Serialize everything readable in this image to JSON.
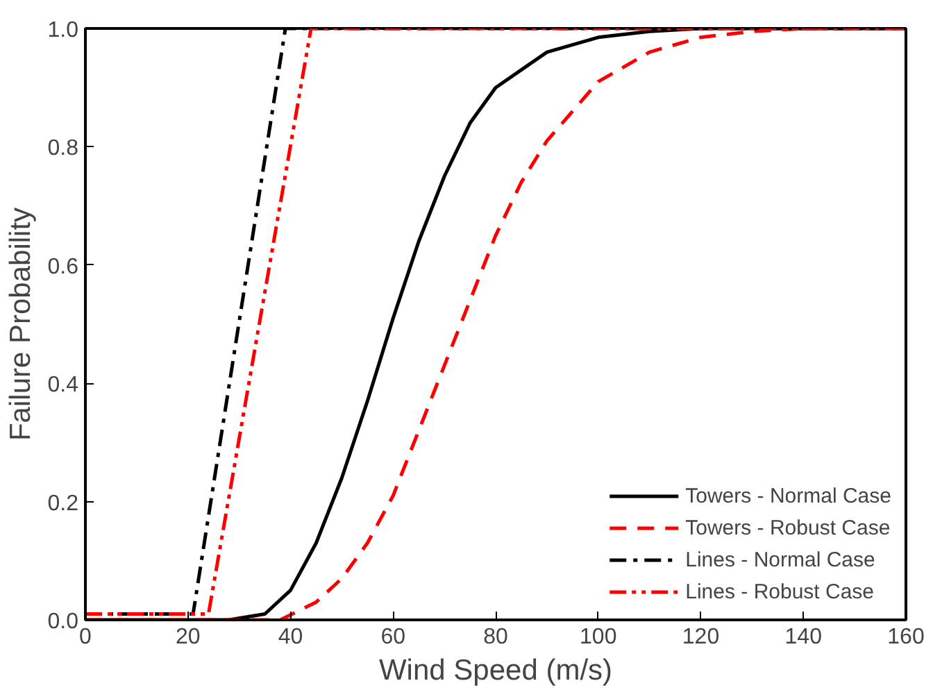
{
  "chart_data": {
    "type": "line",
    "xlabel": "Wind Speed (m/s)",
    "ylabel": "Failure Probability",
    "xlim": [
      0,
      160
    ],
    "ylim": [
      0,
      1.0
    ],
    "xticks": [
      0,
      20,
      40,
      60,
      80,
      100,
      120,
      140,
      160
    ],
    "yticks": [
      {
        "value": 0,
        "label": "0.0"
      },
      {
        "value": 0.2,
        "label": "0.2"
      },
      {
        "value": 0.4,
        "label": "0.4"
      },
      {
        "value": 0.6,
        "label": "0.6"
      },
      {
        "value": 0.8,
        "label": "0.8"
      },
      {
        "value": 1.0,
        "label": "1.0"
      }
    ],
    "grid": false,
    "legend": "bottom right",
    "series": [
      {
        "name": "Towers - Normal Case",
        "color": "#000000",
        "line_style": "solid",
        "x": [
          0,
          28,
          35,
          40,
          45,
          50,
          55,
          60,
          65,
          70,
          75,
          80,
          90,
          100,
          110,
          120,
          160
        ],
        "values": [
          0,
          0,
          0.01,
          0.05,
          0.13,
          0.24,
          0.37,
          0.51,
          0.64,
          0.75,
          0.84,
          0.9,
          0.96,
          0.985,
          0.995,
          1,
          1
        ]
      },
      {
        "name": "Towers - Robust Case",
        "color": "#ff0000",
        "line_style": "dashed",
        "x": [
          0,
          38,
          45,
          50,
          55,
          60,
          65,
          70,
          75,
          80,
          85,
          90,
          100,
          110,
          120,
          130,
          140,
          160
        ],
        "values": [
          0,
          0,
          0.03,
          0.07,
          0.13,
          0.21,
          0.32,
          0.43,
          0.54,
          0.65,
          0.74,
          0.81,
          0.91,
          0.96,
          0.985,
          0.995,
          1,
          1
        ]
      },
      {
        "name": "Lines - Normal Case",
        "color": "#000000",
        "line_style": "dashdot",
        "x": [
          0,
          21,
          39,
          160
        ],
        "values": [
          0.01,
          0.01,
          1,
          1
        ]
      },
      {
        "name": "Lines - Robust Case",
        "color": "#ff0000",
        "line_style": "dashdotdot",
        "x": [
          0,
          24,
          44,
          160
        ],
        "values": [
          0.01,
          0.01,
          1,
          1
        ]
      }
    ]
  }
}
